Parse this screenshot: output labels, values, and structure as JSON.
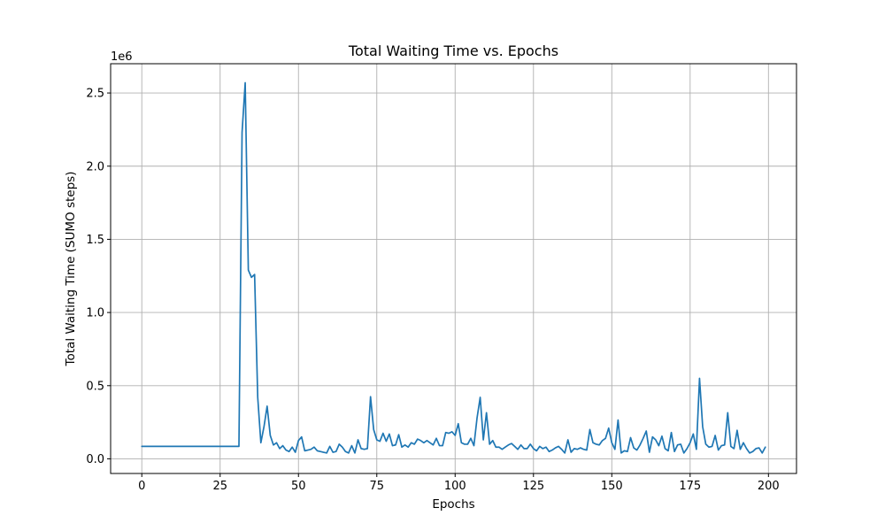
{
  "chart_data": {
    "type": "line",
    "title": "Total Waiting Time vs. Epochs",
    "xlabel": "Epochs",
    "ylabel": "Total Waiting Time (SUMO steps)",
    "y_offset_label": "1e6",
    "y_scale": 1000000,
    "xlim": [
      -9.95,
      208.95
    ],
    "ylim": [
      -100000,
      2700000
    ],
    "x_ticks": [
      0,
      25,
      50,
      75,
      100,
      125,
      150,
      175,
      200
    ],
    "y_ticks": [
      0,
      500000,
      1000000,
      1500000,
      2000000,
      2500000
    ],
    "y_tick_labels": [
      "0.0",
      "0.5",
      "1.0",
      "1.5",
      "2.0",
      "2.5"
    ],
    "grid": true,
    "line_color": "#1f77b4",
    "series": [
      {
        "values": [
          85000,
          85000,
          85000,
          85000,
          85000,
          85000,
          85000,
          85000,
          85000,
          85000,
          85000,
          85000,
          85000,
          85000,
          85000,
          85000,
          85000,
          85000,
          85000,
          85000,
          85000,
          85000,
          85000,
          85000,
          85000,
          85000,
          85000,
          85000,
          85000,
          85000,
          85000,
          85000,
          2230000,
          2570000,
          1290000,
          1240000,
          1260000,
          420000,
          110000,
          220000,
          360000,
          160000,
          95000,
          110000,
          70000,
          90000,
          60000,
          50000,
          80000,
          45000,
          125000,
          150000,
          55000,
          60000,
          65000,
          80000,
          55000,
          50000,
          45000,
          40000,
          85000,
          45000,
          50000,
          100000,
          80000,
          50000,
          40000,
          90000,
          40000,
          130000,
          70000,
          65000,
          70000,
          425000,
          200000,
          130000,
          120000,
          175000,
          120000,
          170000,
          90000,
          95000,
          165000,
          80000,
          95000,
          80000,
          110000,
          100000,
          135000,
          125000,
          110000,
          125000,
          110000,
          95000,
          140000,
          90000,
          90000,
          180000,
          175000,
          185000,
          160000,
          240000,
          110000,
          100000,
          100000,
          140000,
          90000,
          280000,
          420000,
          130000,
          315000,
          100000,
          125000,
          80000,
          80000,
          65000,
          80000,
          95000,
          105000,
          85000,
          65000,
          95000,
          70000,
          70000,
          100000,
          70000,
          55000,
          85000,
          70000,
          80000,
          50000,
          60000,
          75000,
          85000,
          65000,
          40000,
          130000,
          45000,
          70000,
          65000,
          75000,
          65000,
          60000,
          200000,
          110000,
          100000,
          95000,
          125000,
          140000,
          210000,
          110000,
          65000,
          265000,
          40000,
          55000,
          50000,
          145000,
          75000,
          60000,
          95000,
          140000,
          190000,
          45000,
          150000,
          130000,
          90000,
          155000,
          70000,
          55000,
          180000,
          50000,
          95000,
          100000,
          40000,
          70000,
          110000,
          170000,
          65000,
          550000,
          220000,
          100000,
          80000,
          85000,
          160000,
          60000,
          90000,
          95000,
          315000,
          85000,
          70000,
          195000,
          65000,
          110000,
          70000,
          40000,
          50000,
          70000,
          75000,
          40000,
          80000
        ]
      }
    ]
  }
}
